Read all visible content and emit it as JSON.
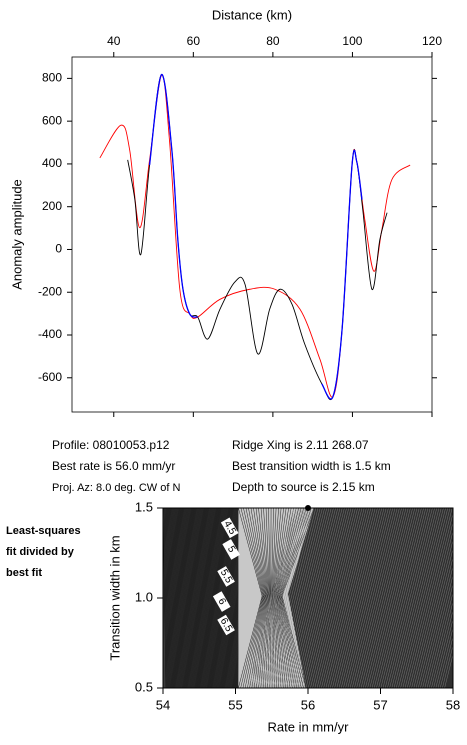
{
  "chart_data": [
    {
      "type": "line",
      "xlabel": "Distance (km)",
      "ylabel": "Anomaly amplitude",
      "xlim": [
        29.5,
        120
      ],
      "xticks": [
        40,
        60,
        80,
        100,
        120
      ],
      "ylim": [
        -760,
        900
      ],
      "yticks": [
        -600,
        -400,
        -200,
        0,
        200,
        400,
        600,
        800
      ],
      "series": [
        {
          "color": "#ff0000",
          "x": [
            36.5,
            41.8,
            44,
            46.5,
            49,
            52,
            54,
            56.6,
            59.1,
            61.1,
            66.7,
            74.2,
            80.5,
            86.8,
            91.8,
            95.1,
            97.4,
            99.9,
            101.1,
            103.1,
            105.4,
            107.4,
            109.9,
            114.5
          ],
          "values": [
            428,
            581,
            465,
            102,
            418,
            814,
            512,
            -186,
            -302,
            -316,
            -233,
            -186,
            -186,
            -279,
            -512,
            -688,
            -372,
            395,
            409,
            140,
            -102,
            93,
            326,
            395
          ]
        },
        {
          "color": "#000000",
          "x": [
            43.5,
            45.3,
            46.8,
            49,
            52,
            54.6,
            56.1,
            57.4,
            59.1,
            61.1,
            63.6,
            66.7,
            70.4,
            73,
            76.2,
            79.2,
            81.8,
            84.8,
            88,
            92.3,
            95.1,
            97.4,
            99.9,
            101.1,
            102.6,
            104.9,
            106.9,
            108.7
          ],
          "values": [
            419,
            233,
            -23,
            395,
            818,
            465,
            47,
            -186,
            -302,
            -316,
            -419,
            -279,
            -153,
            -163,
            -488,
            -279,
            -186,
            -256,
            -442,
            -628,
            -688,
            -372,
            395,
            409,
            186,
            -186,
            47,
            172
          ]
        },
        {
          "color": "#0000ff",
          "x": [
            49,
            52,
            54.6,
            56.1,
            57.4,
            59.1,
            61.1,
            null,
            92.3,
            95.1,
            97.4,
            99.9,
            101.1,
            102.4
          ],
          "values": [
            395,
            818,
            465,
            47,
            -186,
            -302,
            -316,
            null,
            -628,
            -688,
            -372,
            395,
            409,
            233
          ]
        }
      ],
      "annotations": [
        "Profile: 08010053.p12",
        "Best rate is 56.0 mm/yr",
        "Proj. Az: 8.0 deg. CW of N",
        "Ridge Xing is 2.11 268.07",
        "Best transition width is 1.5 km",
        "Depth to source is   2.15 km"
      ]
    },
    {
      "type": "contour",
      "xlabel": "Rate in mm/yr",
      "ylabel": "Transition width in km",
      "caption_lines": [
        "Least-squares",
        "fit divided by",
        "best fit"
      ],
      "xlim": [
        54,
        58
      ],
      "xticks": [
        54,
        55,
        56,
        57,
        58
      ],
      "ylim": [
        0.5,
        1.5
      ],
      "yticks": [
        0.5,
        {
          "value": 1,
          "label": "1.0"
        },
        1.5
      ],
      "best_fit": {
        "x": 56,
        "y": 1.5
      },
      "contour_labels": [
        {
          "label": "4.5",
          "x": 54.92,
          "y": 1.39
        },
        {
          "label": "5",
          "x": 54.94,
          "y": 1.27
        },
        {
          "label": "5.5",
          "x": 54.87,
          "y": 1.12
        },
        {
          "label": "6",
          "x": 54.81,
          "y": 0.98
        },
        {
          "label": "6.5",
          "x": 54.87,
          "y": 0.85
        }
      ]
    }
  ]
}
